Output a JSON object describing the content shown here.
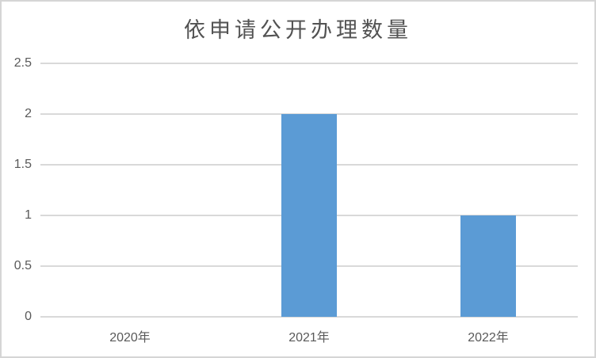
{
  "chart": {
    "title": "依申请公开办理数量"
  },
  "chart_data": {
    "type": "bar",
    "title": "依申请公开办理数量",
    "categories": [
      "2020年",
      "2021年",
      "2022年"
    ],
    "values": [
      0,
      2,
      1
    ],
    "xlabel": "",
    "ylabel": "",
    "ylim": [
      0,
      2.5
    ],
    "yticks": [
      0,
      0.5,
      1,
      1.5,
      2,
      2.5
    ],
    "grid": true,
    "legend": false,
    "colors": {
      "bar": "#5B9BD5",
      "gridline": "#D9D9D9",
      "axis_labels": "#595959",
      "title": "#525252",
      "chart_border": "#D5D5D5",
      "background": "#FFFFFF"
    }
  }
}
